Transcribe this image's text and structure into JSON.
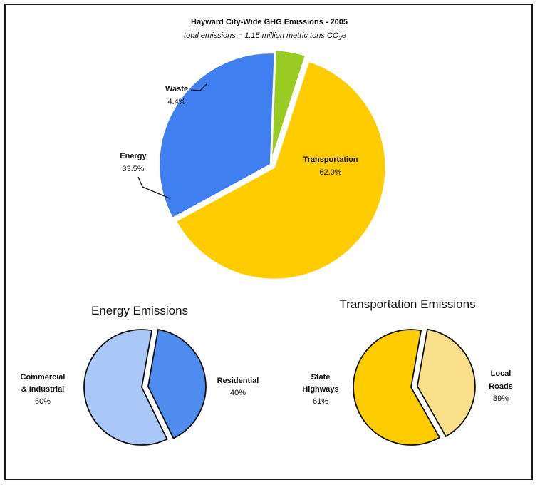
{
  "chart_data": [
    {
      "type": "pie",
      "title": "Hayward City-Wide GHG Emissions - 2005",
      "subtitle": "total emissions = 1.15 million metric tons CO",
      "subtitle_sub": "2",
      "subtitle_tail": "e",
      "slices": [
        {
          "label": "Transportation",
          "pct_label": "62.0%",
          "value": 62.0,
          "color": "#ffcc00"
        },
        {
          "label": "Energy",
          "pct_label": "33.5%",
          "value": 33.5,
          "color": "#3f7ff0"
        },
        {
          "label": "Waste",
          "pct_label": "4.4%",
          "value": 4.4,
          "color": "#99cc22"
        }
      ]
    },
    {
      "type": "pie",
      "title": "Energy Emissions",
      "slices": [
        {
          "label": "Residential",
          "pct_label": "40%",
          "value": 40,
          "color": "#4f8cf0"
        },
        {
          "label": "Commercial & Industrial",
          "label_line1": "Commercial",
          "label_line2": "& Industrial",
          "pct_label": "60%",
          "value": 60,
          "color": "#a9c8f7"
        }
      ]
    },
    {
      "type": "pie",
      "title": "Transportation Emissions",
      "slices": [
        {
          "label": "Local Roads",
          "label_line1": "Local",
          "label_line2": "Roads",
          "pct_label": "39%",
          "value": 39,
          "color": "#fbe08c"
        },
        {
          "label": "State Highways",
          "label_line1": "State",
          "label_line2": "Highways",
          "pct_label": "61%",
          "value": 61,
          "color": "#ffcc00"
        }
      ]
    }
  ]
}
